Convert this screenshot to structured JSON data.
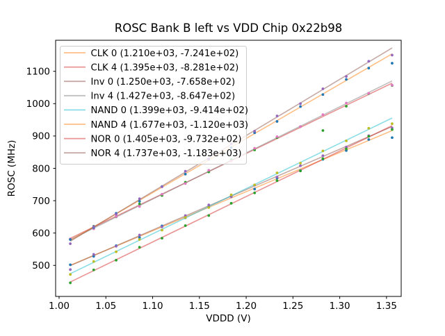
{
  "chart_data": {
    "type": "scatter",
    "title": "ROSC Bank B left vs VDD Chip 0x22b98",
    "xlabel": "VDDD (V)",
    "ylabel": "ROSC (MHz)",
    "xlim": [
      0.9963,
      1.3657
    ],
    "ylim": [
      404,
      1196
    ],
    "grid": false,
    "xticks": {
      "values": [
        1.0,
        1.05,
        1.1,
        1.15,
        1.2,
        1.25,
        1.3,
        1.35
      ],
      "labels": [
        "1.00",
        "1.05",
        "1.10",
        "1.15",
        "1.20",
        "1.25",
        "1.30",
        "1.35"
      ]
    },
    "yticks": {
      "values": [
        500,
        600,
        700,
        800,
        900,
        1000,
        1100
      ],
      "labels": [
        "500",
        "600",
        "700",
        "800",
        "900",
        "1000",
        "1100"
      ]
    },
    "legend": {
      "position": "upper left",
      "frame": true,
      "border_color": "#cccccc",
      "background": "#ffffff",
      "background_alpha": 0.8
    },
    "fit_x_range": [
      1.012,
      1.356
    ],
    "x": [
      1.012,
      1.037,
      1.061,
      1.086,
      1.11,
      1.135,
      1.16,
      1.184,
      1.209,
      1.233,
      1.258,
      1.282,
      1.307,
      1.331,
      1.356
    ],
    "series": [
      {
        "name": "CLK 0",
        "legend_label": "CLK 0 (1.210e+03, -7.241e+02)",
        "fit": {
          "slope": 1210.0,
          "intercept": -724.1
        },
        "line_color": "#ff7f0e",
        "line_alpha": 0.5,
        "marker_color": "#1f77b4",
        "y": [
          502,
          528,
          561,
          586,
          622,
          647,
          681,
          713,
          736,
          770,
          793,
          828,
          855,
          889,
          895
        ]
      },
      {
        "name": "CLK 4",
        "legend_label": "CLK 4 (1.395e+03, -8.281e+02)",
        "fit": {
          "slope": 1395.0,
          "intercept": -828.1
        },
        "line_color": "#d62728",
        "line_alpha": 0.5,
        "marker_color": "#2ca02c",
        "y": [
          581,
          621,
          650,
          690,
          716,
          757,
          789,
          827,
          857,
          895,
          929,
          917,
          992,
          1031,
          1056
        ]
      },
      {
        "name": "Inv 0",
        "legend_label": "Inv 0 (1.250e+03, -7.658e+02)",
        "fit": {
          "slope": 1250.0,
          "intercept": -765.8
        },
        "line_color": "#8c564b",
        "line_alpha": 0.5,
        "marker_color": "#9467bd",
        "y": [
          487,
          534,
          559,
          594,
          619,
          654,
          687,
          712,
          748,
          773,
          808,
          839,
          866,
          901,
          925
        ]
      },
      {
        "name": "Inv 4",
        "legend_label": "Inv 4 (1.427e+03, -8.647e+02)",
        "fit": {
          "slope": 1427.0,
          "intercept": -864.7
        },
        "line_color": "#7f7f7f",
        "line_alpha": 0.5,
        "marker_color": "#e377c2",
        "y": [
          582,
          613,
          651,
          682,
          720,
          753,
          794,
          823,
          862,
          898,
          929,
          966,
          1002,
          1032,
          1057
        ]
      },
      {
        "name": "NAND 0",
        "legend_label": "NAND 0 (1.399e+03, -9.414e+02)",
        "fit": {
          "slope": 1399.0,
          "intercept": -941.4
        },
        "line_color": "#17becf",
        "line_alpha": 0.5,
        "marker_color": "#bcbd22",
        "y": [
          472,
          512,
          542,
          580,
          609,
          648,
          679,
          718,
          749,
          786,
          816,
          854,
          885,
          924,
          938
        ]
      },
      {
        "name": "NAND 4",
        "legend_label": "NAND 4 (1.677e+03, -1.120e+03)",
        "fit": {
          "slope": 1677.0,
          "intercept": -1120.0
        },
        "line_color": "#ff7f0e",
        "line_alpha": 0.5,
        "marker_color": "#1f77b4",
        "y": [
          580,
          617,
          661,
          698,
          744,
          782,
          828,
          864,
          910,
          945,
          991,
          1028,
          1075,
          1110,
          1125
        ]
      },
      {
        "name": "NOR 0",
        "legend_label": "NOR 0 (1.405e+03, -9.732e+02)",
        "fit": {
          "slope": 1405.0,
          "intercept": -973.2
        },
        "line_color": "#d62728",
        "line_alpha": 0.5,
        "marker_color": "#2ca02c",
        "y": [
          446,
          486,
          516,
          556,
          584,
          623,
          654,
          692,
          724,
          762,
          792,
          830,
          860,
          899,
          920
        ]
      },
      {
        "name": "NOR 4",
        "legend_label": "NOR 4 (1.737e+03, -1.183e+03)",
        "fit": {
          "slope": 1737.0,
          "intercept": -1183.0
        },
        "line_color": "#8c564b",
        "line_alpha": 0.5,
        "marker_color": "#9467bd",
        "y": [
          567,
          620,
          658,
          706,
          743,
          791,
          829,
          876,
          915,
          962,
          1000,
          1046,
          1084,
          1131,
          1150
        ]
      }
    ]
  }
}
